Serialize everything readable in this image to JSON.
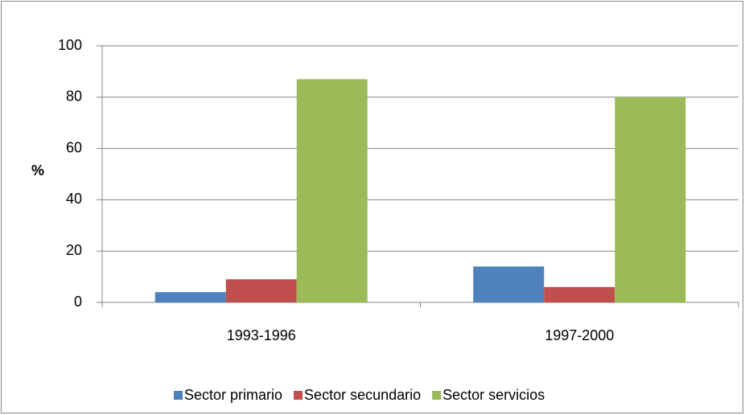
{
  "chart_data": {
    "type": "bar",
    "ylabel": "%",
    "categories": [
      "1993-1996",
      "1997-2000"
    ],
    "series": [
      {
        "name": "Sector primario",
        "color": "#4f81bd",
        "values": [
          4,
          14
        ]
      },
      {
        "name": "Sector secundario",
        "color": "#c0504d",
        "values": [
          9,
          6
        ]
      },
      {
        "name": "Sector servicios",
        "color": "#9bbb59",
        "values": [
          87,
          80
        ]
      }
    ],
    "ylim": [
      0,
      100
    ],
    "yticks": [
      0,
      20,
      40,
      60,
      80,
      100
    ],
    "grid": true,
    "legend": "bottom"
  }
}
